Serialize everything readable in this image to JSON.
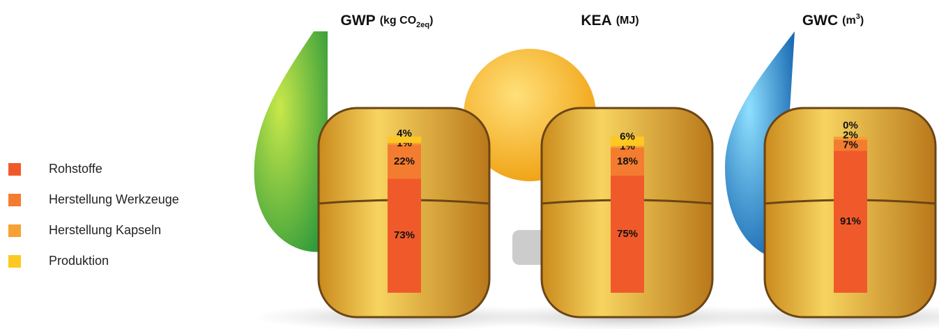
{
  "chart_data": {
    "type": "stacked-bar",
    "categories": [
      "GWP",
      "KEA",
      "GWC"
    ],
    "unit_labels": [
      [
        {
          "text": "(kg CO"
        },
        {
          "text": "2eq",
          "sub": true
        },
        {
          "text": ")"
        }
      ],
      [
        {
          "text": "(MJ)"
        }
      ],
      [
        {
          "text": "(m"
        },
        {
          "text": "3",
          "sup": true
        },
        {
          "text": ")"
        }
      ]
    ],
    "series": [
      {
        "name": "Rohstoffe",
        "color": "#f05a2a",
        "values": [
          73,
          75,
          91
        ],
        "value_labels": [
          "73%",
          "75%",
          "91%"
        ]
      },
      {
        "name": "Herstellung Werkzeuge",
        "color": "#f47c30",
        "values": [
          22,
          18,
          7
        ],
        "value_labels": [
          "22%",
          "18%",
          "7%"
        ]
      },
      {
        "name": "Herstellung Kapseln",
        "color": "#f7a033",
        "values": [
          1,
          1,
          2
        ],
        "value_labels": [
          "1%",
          "1%",
          "2%"
        ]
      },
      {
        "name": "Produktion",
        "color": "#fdc821",
        "values": [
          4,
          6,
          0
        ],
        "value_labels": [
          "4%",
          "6%",
          "0%"
        ]
      }
    ],
    "ylim": [
      0,
      100
    ]
  }
}
